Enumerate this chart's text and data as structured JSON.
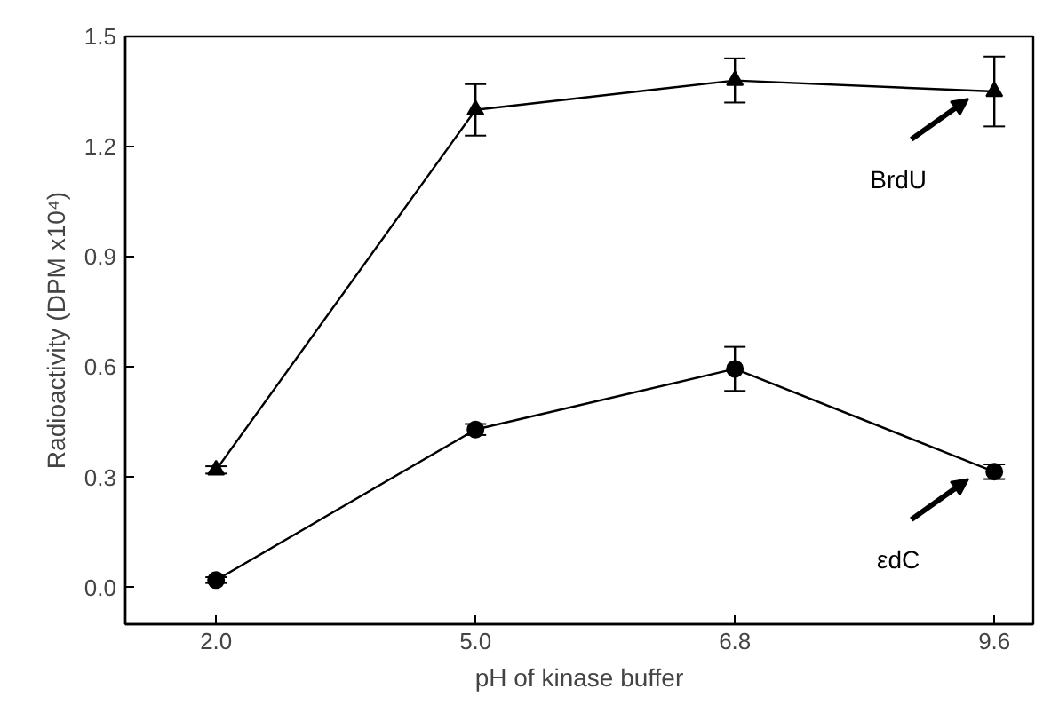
{
  "chart_data": {
    "type": "line",
    "xlabel": "pH of kinase buffer",
    "ylabel": "Radioactivity (DPM x10⁴)",
    "categories": [
      "2.0",
      "5.0",
      "6.8",
      "9.6"
    ],
    "series": [
      {
        "color": "#000000",
        "marker": "triangle",
        "values": [
          0.32,
          1.3,
          1.38,
          1.35
        ],
        "errors": [
          0.01,
          0.07,
          0.06,
          0.095
        ]
      },
      {
        "color": "#000000",
        "marker": "circle",
        "values": [
          0.02,
          0.43,
          0.595,
          0.315
        ],
        "errors": [
          0.008,
          0.015,
          0.06,
          0.02
        ]
      }
    ],
    "ylim": [
      -0.1,
      1.5
    ],
    "yticks": [
      {
        "value": 0,
        "label": "0.0"
      },
      {
        "value": 0.3,
        "label": "0.3"
      },
      {
        "value": 0.6,
        "label": "0.6"
      },
      {
        "value": 0.9,
        "label": "0.9"
      },
      {
        "value": 1.2,
        "label": "1.2"
      },
      {
        "value": 1.5,
        "label": "1.5"
      }
    ],
    "annotations": [
      "BrdU",
      "εdC"
    ],
    "grid": false,
    "line_style": "solid"
  }
}
